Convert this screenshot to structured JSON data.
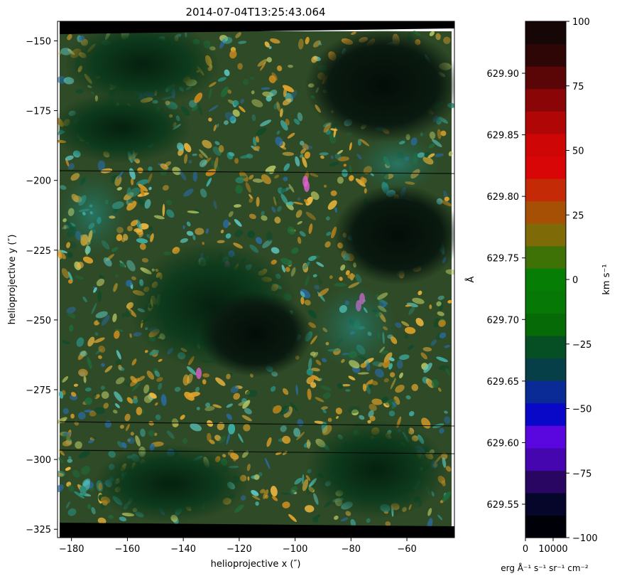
{
  "title": "2014-07-04T13:25:43.064",
  "image_panel": {
    "xlabel": "helioprojective x (″)",
    "ylabel": "helioprojective y (″)",
    "x_ticks": [
      "−180",
      "−160",
      "−140",
      "−120",
      "−100",
      "−80",
      "−60"
    ],
    "y_ticks": [
      "−150",
      "−175",
      "−200",
      "−225",
      "−250",
      "−275",
      "−300",
      "−325"
    ],
    "x_range": [
      -185,
      -43
    ],
    "y_range": [
      -328,
      -143
    ]
  },
  "colorbar": {
    "left_axis_label": "Å",
    "right_axis_label": "km s⁻¹",
    "bottom_label": "erg Å⁻¹ s⁻¹ sr⁻¹ cm⁻²",
    "wavelength_ticks": [
      "629.90",
      "629.85",
      "629.80",
      "629.75",
      "629.70",
      "629.65",
      "629.60",
      "629.55"
    ],
    "velocity_ticks": [
      "100",
      "75",
      "50",
      "25",
      "0",
      "−25",
      "−50",
      "−75",
      "−100"
    ],
    "intensity_ticks": [
      "0",
      "10000"
    ],
    "colors": [
      "#000008",
      "#06062a",
      "#2a0663",
      "#4506b0",
      "#5a06de",
      "#0a08c8",
      "#0a2a96",
      "#063f48",
      "#064f25",
      "#066a06",
      "#067806",
      "#067e06",
      "#3e7206",
      "#7e6a06",
      "#a65006",
      "#c42a06",
      "#d80606",
      "#ce0606",
      "#b00606",
      "#8a0606",
      "#5a0606",
      "#2e0606",
      "#160606"
    ]
  }
}
